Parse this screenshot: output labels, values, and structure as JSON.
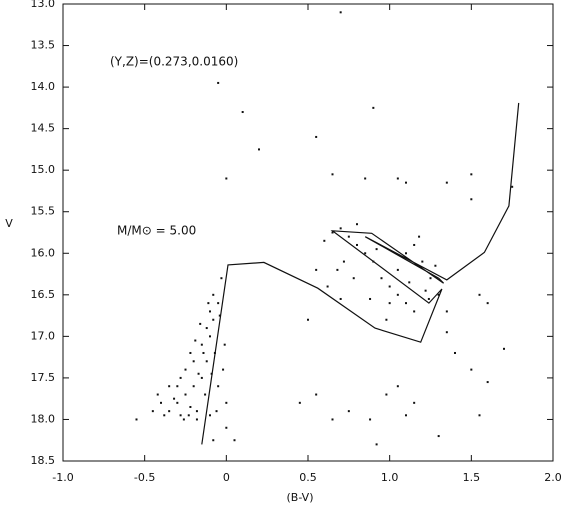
{
  "chart_data": {
    "type": "scatter",
    "xlabel": "(B-V)",
    "ylabel": "V",
    "annotations": [
      "(Y,Z)=(0.273,0.0160)",
      "M/M⊙ = 5.00"
    ],
    "xlim": [
      -1.0,
      2.0
    ],
    "ylim": [
      18.5,
      13.0
    ],
    "xticks": [
      {
        "value": -1.0,
        "label": "-1.0"
      },
      {
        "value": -0.5,
        "label": "-0.5"
      },
      0,
      0.5,
      {
        "value": 1.0,
        "label": "1.0"
      },
      1.5,
      {
        "value": 2.0,
        "label": "2.0"
      }
    ],
    "yticks": [
      {
        "value": 13.0,
        "label": "13.0"
      },
      13.5,
      {
        "value": 14.0,
        "label": "14.0"
      },
      14.5,
      {
        "value": 15.0,
        "label": "15.0"
      },
      15.5,
      {
        "value": 16.0,
        "label": "16.0"
      },
      16.5,
      {
        "value": 17.0,
        "label": "17.0"
      },
      17.5,
      {
        "value": 18.0,
        "label": "18.0"
      },
      18.5
    ],
    "color": "#111111",
    "points": {
      "x": [
        -0.35,
        -0.3,
        -0.28,
        -0.25,
        -0.22,
        -0.2,
        -0.18,
        -0.15,
        -0.12,
        -0.1,
        -0.08,
        -0.05,
        -0.03,
        -0.1,
        -0.07,
        -0.15,
        -0.2,
        -0.25,
        -0.3,
        -0.4,
        -0.45,
        -0.05,
        -0.02,
        0.0,
        -0.1,
        -0.13,
        -0.17,
        -0.22,
        -0.08,
        -0.12,
        -0.06,
        -0.35,
        -0.28,
        -0.18,
        -0.23,
        -0.38,
        -0.55,
        -0.16,
        -0.04,
        -0.01,
        0.0,
        -0.08,
        0.05,
        -0.26,
        -0.14,
        -0.19,
        -0.11,
        -0.09,
        -0.32,
        -0.42,
        0.65,
        0.7,
        0.75,
        0.8,
        0.85,
        0.72,
        0.68,
        0.78,
        0.9,
        0.95,
        1.0,
        1.05,
        1.1,
        1.15,
        1.2,
        1.25,
        1.3,
        1.22,
        1.1,
        1.0,
        0.6,
        0.55,
        0.62,
        0.8,
        1.18,
        1.28,
        1.35,
        0.98,
        0.88,
        1.12,
        1.05,
        0.92,
        0.7,
        1.24,
        1.15,
        -0.05,
        0.1,
        0.2,
        0.0,
        0.9,
        0.55,
        0.65,
        0.85,
        1.05,
        1.1,
        1.35,
        1.5,
        1.5,
        1.75,
        0.5,
        0.55,
        0.45,
        0.65,
        0.75,
        0.88,
        0.92,
        0.98,
        1.05,
        1.1,
        1.15,
        1.3,
        1.5,
        1.4,
        1.6,
        1.55,
        1.7,
        1.35,
        0.7,
        1.55,
        1.6
      ],
      "y": [
        17.9,
        17.8,
        17.95,
        17.7,
        17.85,
        17.6,
        17.9,
        17.5,
        17.3,
        17.0,
        16.8,
        16.6,
        16.3,
        16.7,
        17.2,
        17.1,
        17.3,
        17.4,
        17.6,
        17.8,
        17.9,
        17.6,
        17.4,
        17.8,
        17.95,
        17.7,
        17.45,
        17.2,
        16.5,
        16.9,
        17.9,
        17.6,
        17.5,
        18.0,
        17.95,
        17.95,
        18.0,
        16.85,
        16.75,
        17.1,
        18.1,
        18.25,
        18.25,
        18.0,
        17.2,
        17.05,
        16.6,
        17.45,
        17.75,
        17.7,
        15.75,
        15.7,
        15.8,
        15.9,
        16.0,
        16.1,
        16.2,
        16.3,
        16.1,
        16.3,
        16.4,
        16.2,
        16.0,
        15.9,
        16.1,
        16.3,
        16.5,
        16.45,
        16.6,
        16.6,
        15.85,
        16.2,
        16.4,
        15.65,
        15.8,
        16.15,
        16.7,
        16.8,
        16.55,
        16.35,
        16.5,
        15.95,
        16.55,
        16.55,
        16.7,
        13.95,
        14.3,
        14.75,
        15.1,
        14.25,
        14.6,
        15.05,
        15.1,
        15.1,
        15.15,
        15.15,
        15.05,
        15.35,
        15.2,
        16.8,
        17.7,
        17.8,
        18.0,
        17.9,
        18.0,
        18.3,
        17.7,
        17.6,
        17.95,
        17.8,
        18.2,
        17.4,
        17.2,
        16.6,
        16.5,
        17.15,
        16.95,
        13.1,
        17.95,
        17.55
      ]
    },
    "track": {
      "x": [
        -0.15,
        0.01,
        0.23,
        0.56,
        0.91,
        1.19,
        1.32,
        1.24,
        0.65,
        0.89,
        1.33,
        1.3,
        0.85,
        1.35,
        1.58,
        1.73,
        1.79
      ],
      "y": [
        18.3,
        16.14,
        16.11,
        16.42,
        16.9,
        17.07,
        16.43,
        16.6,
        15.73,
        15.76,
        16.36,
        16.3,
        15.8,
        16.32,
        15.99,
        15.43,
        14.19
      ]
    }
  }
}
